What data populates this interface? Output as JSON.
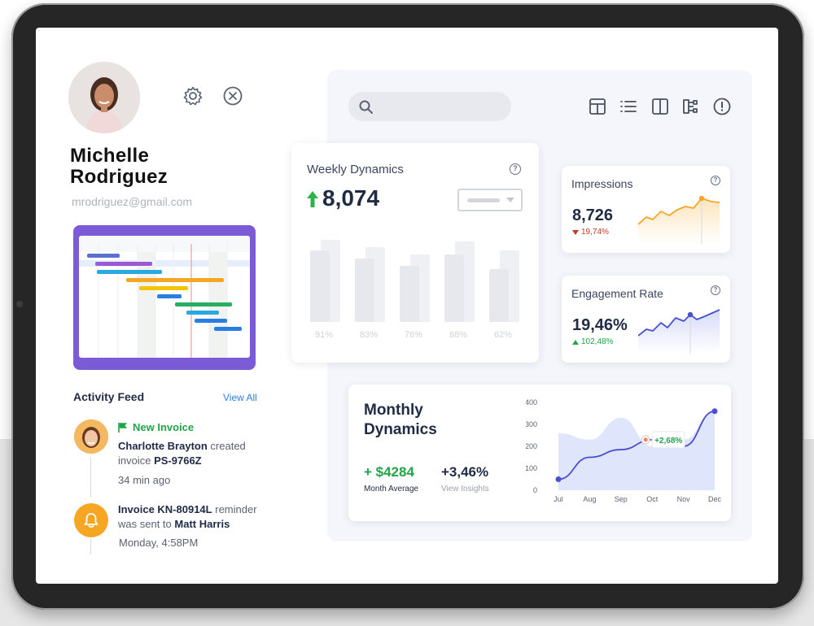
{
  "profile": {
    "name": "Michelle Rodriguez",
    "email": "mrodriguez@gmail.com"
  },
  "activity": {
    "title": "Activity Feed",
    "view_all": "View All",
    "item1": {
      "tag": "New Invoice",
      "actor": "Charlotte Brayton",
      "action": "created",
      "object_prefix": "invoice",
      "invoice": "PS-9766Z",
      "time": "34  min ago"
    },
    "item2": {
      "invoice": "Invoice KN-80914L",
      "action": "reminder",
      "line2_prefix": "was sent to",
      "recipient": "Matt Harris",
      "time": "Monday, 4:58PM"
    }
  },
  "weekly": {
    "title": "Weekly Dynamics",
    "value": "8,074",
    "bars": [
      {
        "label": "91%",
        "back": 0.78,
        "front": 0.68
      },
      {
        "label": "83%",
        "back": 0.71,
        "front": 0.6
      },
      {
        "label": "76%",
        "back": 0.64,
        "front": 0.53
      },
      {
        "label": "88%",
        "back": 0.76,
        "front": 0.64
      },
      {
        "label": "62%",
        "back": 0.68,
        "front": 0.5
      }
    ]
  },
  "impressions": {
    "title": "Impressions",
    "value": "8,726",
    "delta": "19,74%"
  },
  "engagement": {
    "title": "Engagement Rate",
    "value": "19,46%",
    "delta": "102,48%"
  },
  "monthly": {
    "title": "Monthly Dynamics",
    "stat1_value": "+ $4284",
    "stat1_label": "Month Average",
    "stat2_value": "+3,46%",
    "stat2_label": "View Insights",
    "callout": "+2,68%"
  },
  "chart_data": {
    "type": "line",
    "categories": [
      "Jul",
      "Aug",
      "Sep",
      "Oct",
      "Nov",
      "Dec"
    ],
    "yticks": [
      "400",
      "300",
      "200",
      "100",
      "0"
    ],
    "ylim": [
      0,
      400
    ],
    "series": [
      {
        "values": [
          50,
          150,
          185,
          230,
          200,
          360
        ]
      }
    ],
    "area_envelope": [
      260,
      230,
      330,
      200,
      230,
      360
    ]
  },
  "colors": {
    "accent_purple": "#7b5cd6",
    "accent_green": "#22a447",
    "accent_orange": "#f5a623",
    "line_blue": "#4a4fd1"
  }
}
